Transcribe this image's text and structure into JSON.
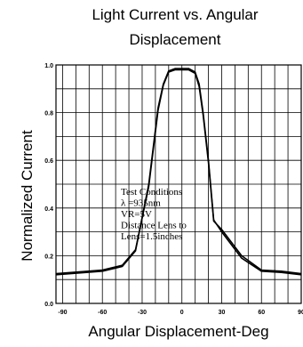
{
  "chart_data": {
    "type": "line",
    "title_lines": [
      "Light Current vs. Angular",
      "Displacement"
    ],
    "xlabel": "Angular Displacement-Deg",
    "ylabel": "Normalized Current",
    "xlim": [
      -95,
      90
    ],
    "ylim": [
      0,
      1.0
    ],
    "xticks": [
      -90,
      -60,
      -30,
      0,
      30,
      60,
      90
    ],
    "xtick_labels": [
      "-90",
      "-60",
      "-30",
      "0",
      "30",
      "60",
      "90"
    ],
    "yticks": [
      0,
      0.2,
      0.4,
      0.6,
      0.8,
      1.0
    ],
    "ytick_labels": [
      "0.0",
      "0.2",
      "0.4",
      "0.6",
      "0.8",
      "1.0"
    ],
    "grid": true,
    "series": [
      {
        "x": [
          -95,
          -60,
          -45,
          -35,
          -25,
          -18,
          -14,
          -10,
          -5,
          0,
          5,
          10,
          13,
          16,
          20,
          24,
          30,
          45,
          60,
          75,
          90
        ],
        "y": [
          0.12,
          0.135,
          0.155,
          0.22,
          0.5,
          0.82,
          0.92,
          0.975,
          0.985,
          0.985,
          0.985,
          0.97,
          0.92,
          0.8,
          0.6,
          0.35,
          0.3,
          0.19,
          0.135,
          0.13,
          0.12
        ]
      },
      {
        "x": [
          -95,
          -60,
          -45,
          -35,
          -25,
          -18,
          -14,
          -10,
          -5,
          0,
          5,
          10,
          13,
          16,
          20,
          24,
          30,
          45,
          60,
          75,
          90
        ],
        "y": [
          0.125,
          0.14,
          0.16,
          0.225,
          0.49,
          0.81,
          0.915,
          0.97,
          0.98,
          0.98,
          0.98,
          0.965,
          0.91,
          0.79,
          0.59,
          0.345,
          0.31,
          0.2,
          0.14,
          0.135,
          0.125
        ]
      }
    ],
    "annotation_lines": [
      "Test Conditions",
      "λ =935nm",
      "VR=5V",
      "Distance Lens to",
      "Lens=1.5inches"
    ]
  }
}
